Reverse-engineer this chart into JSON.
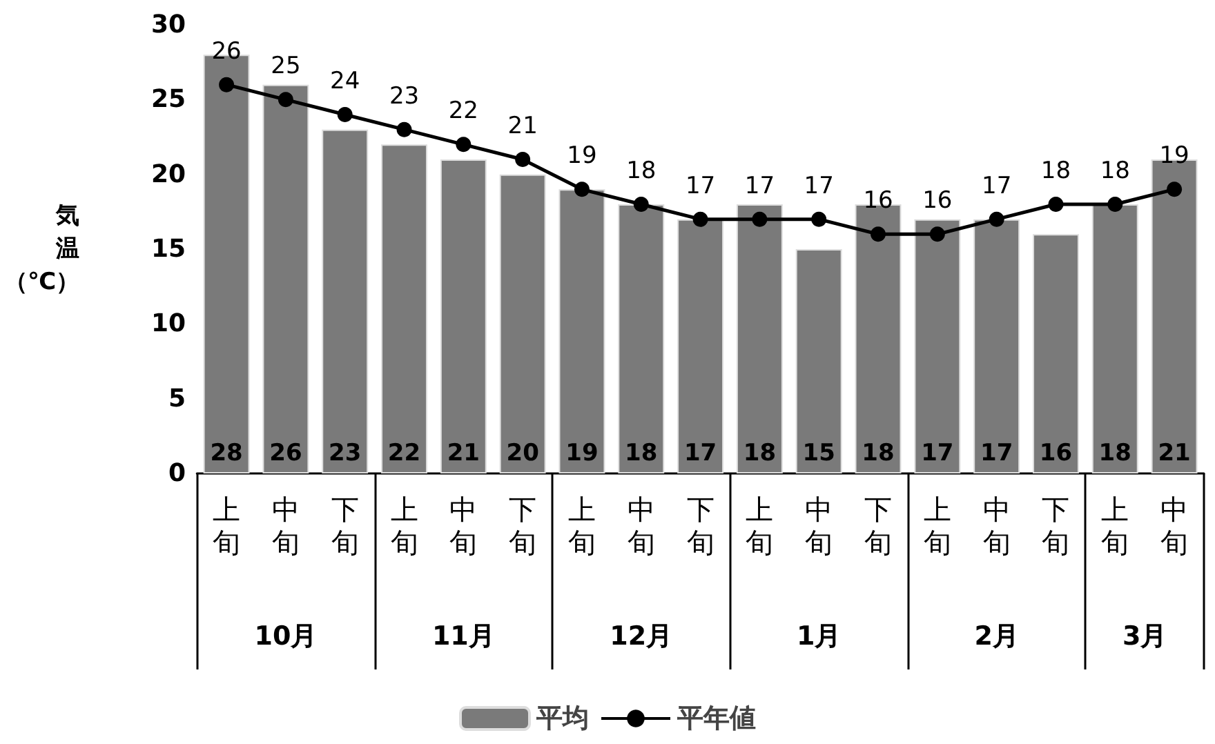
{
  "chart_data": {
    "type": "bar",
    "ylabel": "気温（℃）",
    "categories": [
      "上旬",
      "中旬",
      "下旬",
      "上旬",
      "中旬",
      "下旬",
      "上旬",
      "中旬",
      "下旬",
      "上旬",
      "中旬",
      "下旬",
      "上旬",
      "中旬",
      "下旬",
      "上旬",
      "中旬"
    ],
    "annotations": [
      "10月",
      "11月",
      "12月",
      "1月",
      "2月",
      "3月"
    ],
    "series": [
      {
        "name": "平均",
        "color": "#7a7a7a",
        "values": [
          28,
          26,
          23,
          22,
          21,
          20,
          19,
          18,
          17,
          18,
          15,
          18,
          17,
          17,
          16,
          18,
          21
        ]
      },
      {
        "name": "平年値",
        "type": "line",
        "color": "#000000",
        "marker": "circle",
        "values": [
          26,
          25,
          24,
          23,
          22,
          21,
          19,
          18,
          17,
          17,
          17,
          16,
          16,
          17,
          18,
          18,
          19
        ]
      }
    ],
    "ylim": [
      0,
      30
    ],
    "yticks": [
      0,
      5,
      10,
      15,
      20,
      25,
      30
    ],
    "grid": false,
    "legend": "bottom",
    "data_labels": true
  }
}
